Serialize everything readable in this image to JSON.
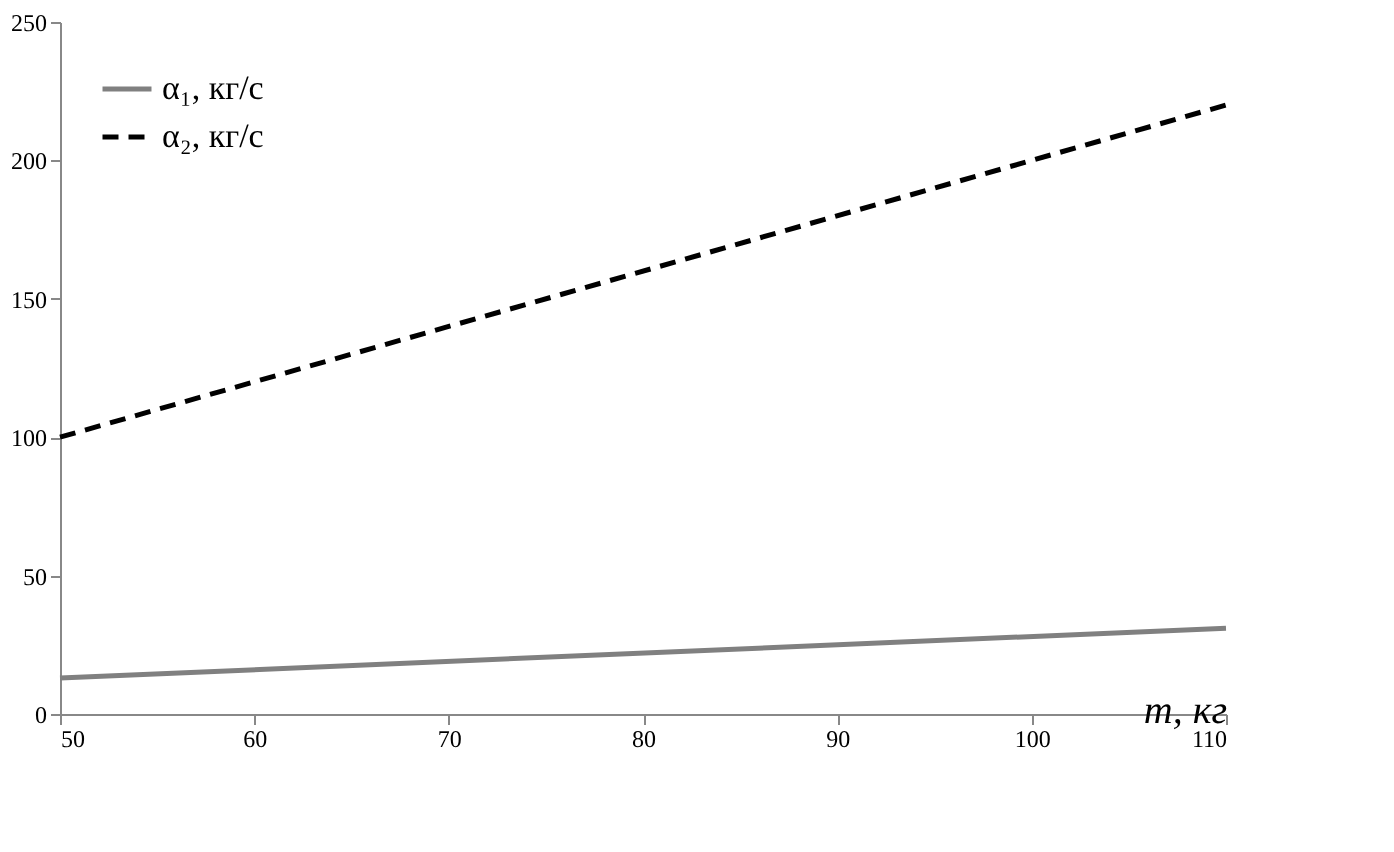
{
  "chart_data": {
    "type": "line",
    "xlabel": "m, кг",
    "x": [
      50,
      110
    ],
    "series": [
      {
        "name": "α₁, кг/с",
        "color": "#808080",
        "values": [
          13,
          31
        ],
        "line_style": "solid"
      },
      {
        "name": "α₂, кг/с",
        "color": "#000000",
        "values": [
          100,
          220
        ],
        "line_style": "dashed"
      }
    ],
    "xlim": [
      50,
      110
    ],
    "xticks": [
      50,
      60,
      70,
      80,
      90,
      100,
      110
    ],
    "ylim": [
      0,
      250
    ],
    "yticks": [
      0,
      50,
      100,
      150,
      200,
      250
    ],
    "grid": false,
    "legend": "top left",
    "marker": "none"
  }
}
